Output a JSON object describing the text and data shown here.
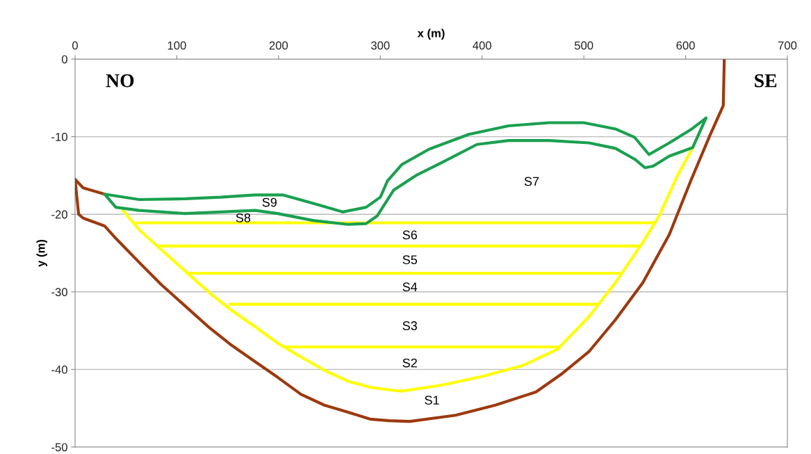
{
  "chart_data": {
    "type": "line",
    "xlabel": "x (m)",
    "ylabel": "y (m)",
    "xlim": [
      0,
      700
    ],
    "xticks": [
      0,
      100,
      200,
      300,
      400,
      500,
      600,
      700
    ],
    "ylim": [
      -50,
      0
    ],
    "yticks": [
      -50,
      -40,
      -30,
      -20,
      -10,
      0
    ],
    "grid": "y",
    "marker": "none",
    "line_style": "solid",
    "series": [
      {
        "color": "#9c3a0f",
        "x": [
          0,
          3.5,
          8,
          29,
          40,
          63,
          85,
          108,
          131,
          154,
          177,
          199,
          222,
          245,
          268,
          290,
          309,
          329,
          374,
          413,
          453,
          479,
          505,
          531,
          558,
          584,
          605,
          623,
          637,
          638
        ],
        "values": [
          -15.5,
          -20,
          -20.5,
          -21.5,
          -23.1,
          -26.2,
          -29.1,
          -31.8,
          -34.5,
          -36.9,
          -39,
          -41,
          -43.2,
          -44.6,
          -45.5,
          -46.4,
          -46.6,
          -46.7,
          -45.9,
          -44.6,
          -42.9,
          -40.5,
          -37.7,
          -33.6,
          -28.8,
          -22.6,
          -15.7,
          -10.1,
          -6,
          0
        ]
      },
      {
        "color": "#9c3a0f",
        "x": [
          0,
          8,
          29
        ],
        "values": [
          -15.5,
          -16.6,
          -17.4
        ]
      },
      {
        "color": "#ffff00",
        "x": [
          47,
          63,
          85,
          108,
          131,
          154,
          177,
          199,
          222,
          245,
          268,
          290,
          313,
          321,
          361,
          400,
          440,
          474,
          505,
          531,
          558,
          574,
          592,
          607
        ],
        "values": [
          -19.5,
          -22,
          -24.6,
          -27.3,
          -30,
          -32.4,
          -34.5,
          -36.6,
          -38.4,
          -40.1,
          -41.5,
          -42.3,
          -42.7,
          -42.8,
          -42,
          -40.9,
          -39.5,
          -37.4,
          -33.2,
          -28.8,
          -23.6,
          -20.2,
          -15,
          -11.4
        ]
      },
      {
        "color": "#ffff00",
        "x": [
          61,
          570
        ],
        "values": [
          -21.1,
          -21.1
        ]
      },
      {
        "color": "#ffff00",
        "x": [
          83,
          555
        ],
        "values": [
          -24.1,
          -24.1
        ]
      },
      {
        "color": "#ffff00",
        "x": [
          113,
          537
        ],
        "values": [
          -27.6,
          -27.6
        ]
      },
      {
        "color": "#ffff00",
        "x": [
          152,
          514
        ],
        "values": [
          -31.6,
          -31.6
        ]
      },
      {
        "color": "#ffff00",
        "x": [
          206,
          474
        ],
        "values": [
          -37.1,
          -37.1
        ]
      },
      {
        "color": "#1aa050",
        "x": [
          29,
          63,
          108,
          143,
          177,
          204,
          234,
          263,
          286,
          300,
          307,
          321,
          348,
          387,
          426,
          466,
          500,
          531,
          550,
          564,
          584,
          605,
          620
        ],
        "values": [
          -17.4,
          -18.1,
          -18,
          -17.8,
          -17.5,
          -17.5,
          -18.6,
          -19.7,
          -19.1,
          -17.8,
          -15.7,
          -13.6,
          -11.6,
          -9.7,
          -8.6,
          -8.2,
          -8.2,
          -9,
          -10.1,
          -12.3,
          -10.8,
          -9.1,
          -7.6
        ]
      },
      {
        "color": "#1aa050",
        "x": [
          29,
          40,
          63,
          108,
          143,
          177,
          199,
          234,
          268,
          286,
          297,
          313,
          335,
          361,
          395,
          426,
          466,
          505,
          531,
          550,
          560,
          568,
          584,
          607,
          620
        ],
        "values": [
          -17.4,
          -19.1,
          -19.5,
          -19.9,
          -19.7,
          -19.5,
          -19.9,
          -20.8,
          -21.3,
          -21.2,
          -20.2,
          -16.9,
          -15,
          -13.3,
          -11,
          -10.5,
          -10.5,
          -10.8,
          -11.5,
          -12.9,
          -14,
          -13.8,
          -12.5,
          -11.4,
          -7.6
        ]
      }
    ],
    "annotations": [
      "NO",
      "SE",
      "S1",
      "S2",
      "S3",
      "S4",
      "S5",
      "S6",
      "S7",
      "S8",
      "S9"
    ]
  }
}
